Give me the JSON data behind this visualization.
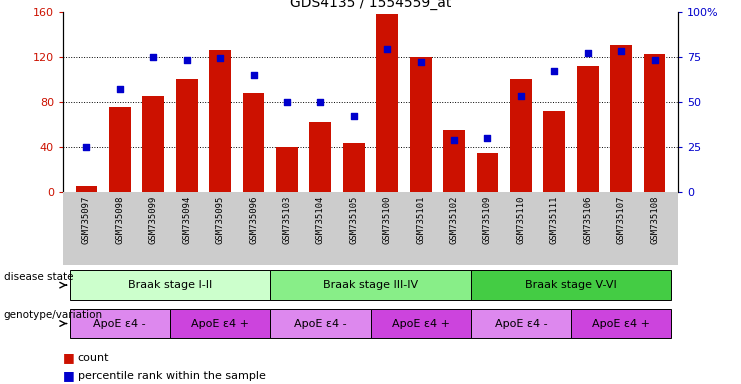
{
  "title": "GDS4135 / 1554559_at",
  "samples": [
    "GSM735097",
    "GSM735098",
    "GSM735099",
    "GSM735094",
    "GSM735095",
    "GSM735096",
    "GSM735103",
    "GSM735104",
    "GSM735105",
    "GSM735100",
    "GSM735101",
    "GSM735102",
    "GSM735109",
    "GSM735110",
    "GSM735111",
    "GSM735106",
    "GSM735107",
    "GSM735108"
  ],
  "counts": [
    5,
    75,
    85,
    100,
    126,
    88,
    40,
    62,
    43,
    158,
    120,
    55,
    35,
    100,
    72,
    112,
    130,
    122
  ],
  "percentile_ranks": [
    25,
    57,
    75,
    73,
    74,
    65,
    50,
    50,
    42,
    79,
    72,
    29,
    30,
    53,
    67,
    77,
    78,
    73
  ],
  "ylim_left": [
    0,
    160
  ],
  "ylim_right": [
    0,
    100
  ],
  "yticks_left": [
    0,
    40,
    80,
    120,
    160
  ],
  "yticks_right": [
    0,
    25,
    50,
    75,
    100
  ],
  "ytick_labels_right": [
    "0",
    "25",
    "50",
    "75",
    "100%"
  ],
  "bar_color": "#cc1100",
  "dot_color": "#0000cc",
  "stages": [
    {
      "label": "Braak stage I-II",
      "start": 0,
      "end": 6,
      "color": "#ccffcc"
    },
    {
      "label": "Braak stage III-IV",
      "start": 6,
      "end": 12,
      "color": "#88ee88"
    },
    {
      "label": "Braak stage V-VI",
      "start": 12,
      "end": 18,
      "color": "#44cc44"
    }
  ],
  "genotypes": [
    {
      "label": "ApoE ε4 -",
      "start": 0,
      "end": 3,
      "color": "#dd88ee"
    },
    {
      "label": "ApoE ε4 +",
      "start": 3,
      "end": 6,
      "color": "#cc44dd"
    },
    {
      "label": "ApoE ε4 -",
      "start": 6,
      "end": 9,
      "color": "#dd88ee"
    },
    {
      "label": "ApoE ε4 +",
      "start": 9,
      "end": 12,
      "color": "#cc44dd"
    },
    {
      "label": "ApoE ε4 -",
      "start": 12,
      "end": 15,
      "color": "#dd88ee"
    },
    {
      "label": "ApoE ε4 +",
      "start": 15,
      "end": 18,
      "color": "#cc44dd"
    }
  ],
  "disease_state_label": "disease state",
  "genotype_label": "genotype/variation",
  "legend_count_label": "count",
  "legend_pct_label": "percentile rank within the sample",
  "sample_label_bg": "#cccccc"
}
